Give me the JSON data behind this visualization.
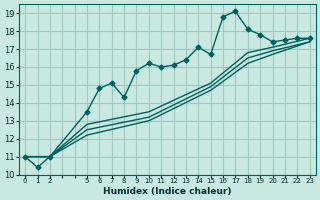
{
  "xlabel": "Humidex (Indice chaleur)",
  "ylabel": "",
  "bg_color": "#c8e8e0",
  "grid_color": "#a0c8c0",
  "line_color": "#006060",
  "xlim": [
    -0.5,
    23.5
  ],
  "ylim": [
    10,
    19.5
  ],
  "yticks": [
    10,
    11,
    12,
    13,
    14,
    15,
    16,
    17,
    18,
    19
  ],
  "xtick_positions": [
    0,
    1,
    2,
    3,
    4,
    5,
    6,
    7,
    8,
    9,
    10,
    11,
    12,
    13,
    14,
    15,
    16,
    17,
    18,
    19,
    20,
    21,
    22,
    23
  ],
  "xtick_labels": [
    "0",
    "1",
    "2",
    "",
    "",
    "5",
    "6",
    "7",
    "8",
    "9",
    "10",
    "11",
    "12",
    "13",
    "14",
    "15",
    "16",
    "17",
    "18",
    "19",
    "20",
    "21",
    "22",
    "23"
  ],
  "series1_x": [
    0,
    1,
    2,
    5,
    6,
    7,
    8,
    9,
    10,
    11,
    12,
    13,
    14,
    15,
    16,
    17,
    18,
    19,
    20,
    21,
    22,
    23
  ],
  "series1_y": [
    11.0,
    10.4,
    11.0,
    13.5,
    14.8,
    15.1,
    14.3,
    15.8,
    16.2,
    16.0,
    16.1,
    16.4,
    17.1,
    16.7,
    18.8,
    19.1,
    18.1,
    17.8,
    17.4,
    17.5,
    17.6,
    17.6
  ],
  "series2_x": [
    0,
    2,
    5,
    10,
    15,
    18,
    20,
    23
  ],
  "series2_y": [
    11.0,
    11.0,
    12.8,
    13.5,
    15.1,
    16.8,
    17.1,
    17.6
  ],
  "series3_x": [
    0,
    2,
    5,
    10,
    15,
    18,
    20,
    23
  ],
  "series3_y": [
    11.0,
    11.0,
    12.5,
    13.2,
    14.9,
    16.5,
    16.9,
    17.4
  ],
  "series4_x": [
    0,
    2,
    5,
    10,
    15,
    18,
    20,
    23
  ],
  "series4_y": [
    11.0,
    11.0,
    12.2,
    13.0,
    14.7,
    16.2,
    16.7,
    17.4
  ],
  "tick_color": "#003030",
  "label_fontsize": 6.5,
  "tick_fontsize": 5,
  "ytick_fontsize": 6
}
